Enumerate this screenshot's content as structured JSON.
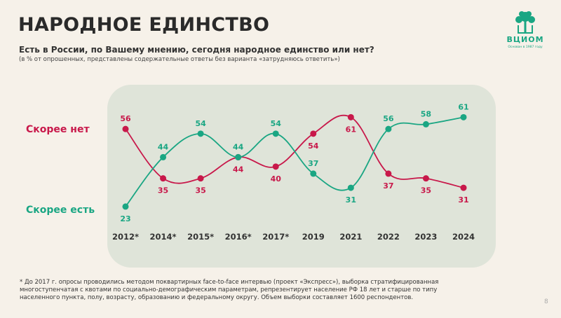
{
  "header": {
    "title": "НАРОДНОЕ ЕДИНСТВО",
    "question": "Есть в России, по Вашему мнению, сегодня народное единство или нет?",
    "note": "(в % от опрошенных, представлены содержательные ответы без варианта «затрудняюсь ответить»)"
  },
  "logo": {
    "name": "ВЦИОМ",
    "sub": "Основан в 1987 году",
    "color": "#1aa683"
  },
  "chart_data": {
    "type": "line",
    "categories": [
      "2012*",
      "2014*",
      "2015*",
      "2016*",
      "2017*",
      "2019",
      "2021",
      "2022",
      "2023",
      "2024"
    ],
    "series": [
      {
        "name": "Скорее нет",
        "color": "#c8184a",
        "values": [
          56,
          35,
          35,
          44,
          40,
          54,
          61,
          37,
          35,
          31
        ]
      },
      {
        "name": "Скорее есть",
        "color": "#1aa683",
        "values": [
          23,
          44,
          54,
          44,
          54,
          37,
          31,
          56,
          58,
          61
        ]
      }
    ],
    "ylim": [
      20,
      62
    ],
    "grid": false,
    "legend": "left"
  },
  "footnote": "* До 2017 г. опросы проводились методом поквартирных face-to-face интервью (проект «Экспресс»), выборка стратифицированная многоступенчатая с квотами по социально-демографическим параметрам, репрезентирует население РФ 18 лет и старше по типу населенного пункта, полу, возрасту, образованию и федеральному округу. Объем выборки составляет 1600 респондентов.",
  "page_number": "8",
  "colors": {
    "background": "#f6f1e9",
    "panel": "#dfe4d9"
  }
}
